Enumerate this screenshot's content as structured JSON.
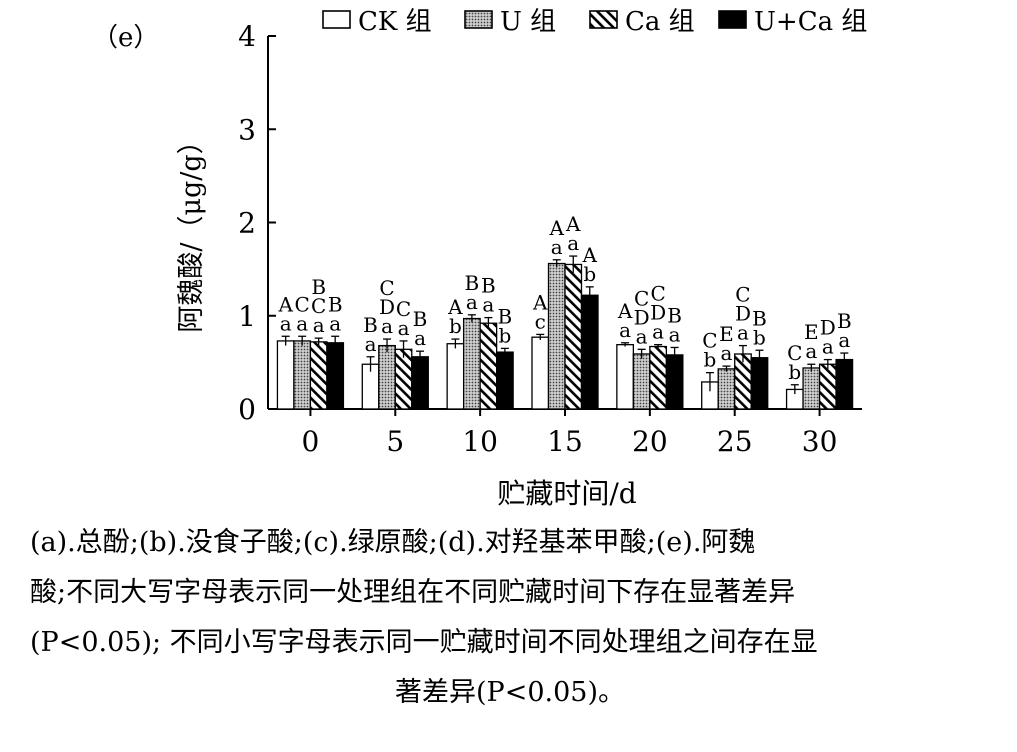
{
  "panel_label": "（e）",
  "chart_data": {
    "type": "bar",
    "title": "",
    "xlabel": "贮藏时间/d",
    "ylabel": "阿魏酸/（μg/g）",
    "ylim": [
      0,
      4
    ],
    "yticks": [
      0,
      1,
      2,
      3,
      4
    ],
    "categories": [
      "0",
      "5",
      "10",
      "15",
      "20",
      "25",
      "30"
    ],
    "legend_position": "top",
    "series": [
      {
        "name": "CK 组",
        "pattern": "white",
        "values": [
          0.73,
          0.48,
          0.7,
          0.77,
          0.69,
          0.29,
          0.21
        ],
        "errors": [
          0.05,
          0.08,
          0.05,
          0.03,
          0.02,
          0.1,
          0.05
        ],
        "letters_upper": [
          "A",
          "B",
          "A",
          "A",
          "A",
          "C",
          "C"
        ],
        "letters_lower": [
          "a",
          "a",
          "b",
          "c",
          "a",
          "b",
          "b"
        ]
      },
      {
        "name": "U 组",
        "pattern": "dotted",
        "values": [
          0.73,
          0.68,
          0.97,
          1.56,
          0.59,
          0.43,
          0.44
        ],
        "errors": [
          0.05,
          0.07,
          0.04,
          0.04,
          0.05,
          0.03,
          0.04
        ],
        "letters_upper": [
          "C",
          "CD",
          "B",
          "A",
          "CD",
          "E",
          "E"
        ],
        "letters_lower": [
          "a",
          "a",
          "a",
          "a",
          "a",
          "a",
          "a"
        ]
      },
      {
        "name": "Ca 组",
        "pattern": "hatched",
        "values": [
          0.72,
          0.64,
          0.92,
          1.55,
          0.67,
          0.59,
          0.48
        ],
        "errors": [
          0.04,
          0.09,
          0.06,
          0.09,
          0.02,
          0.09,
          0.05
        ],
        "letters_upper": [
          "BC",
          "C",
          "B",
          "A",
          "CD",
          "CD",
          "D"
        ],
        "letters_lower": [
          "a",
          "a",
          "a",
          "a",
          "a",
          "a",
          "a"
        ]
      },
      {
        "name": "U+Ca 组",
        "pattern": "black",
        "values": [
          0.71,
          0.56,
          0.61,
          1.22,
          0.58,
          0.55,
          0.53
        ],
        "errors": [
          0.07,
          0.06,
          0.04,
          0.09,
          0.08,
          0.08,
          0.07
        ],
        "letters_upper": [
          "B",
          "B",
          "B",
          "A",
          "B",
          "B",
          "B"
        ],
        "letters_lower": [
          "a",
          "a",
          "b",
          "b",
          "a",
          "b",
          "a"
        ]
      }
    ]
  },
  "caption": {
    "line1": "(a).总酚;(b).没食子酸;(c).绿原酸;(d).对羟基苯甲酸;(e).阿魏",
    "line2": "酸;不同大写字母表示同一处理组在不同贮藏时间下存在显著差异",
    "line3": "(P<0.05); 不同小写字母表示同一贮藏时间不同处理组之间存在显",
    "line4": "著差异(P<0.05)。"
  }
}
